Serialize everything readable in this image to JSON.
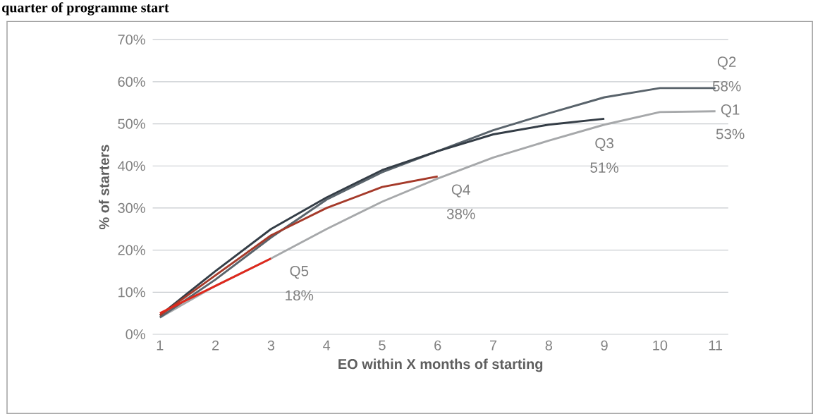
{
  "chart_data": {
    "type": "line",
    "title": "quarter of programme start",
    "xlabel": "EO within X months of starting",
    "ylabel": "% of starters",
    "categories": [
      "1",
      "2",
      "3",
      "4",
      "5",
      "6",
      "7",
      "8",
      "9",
      "10",
      "11"
    ],
    "ylim": [
      0,
      70
    ],
    "yticks": [
      {
        "value": 0,
        "label": "0%"
      },
      {
        "value": 10,
        "label": "10%"
      },
      {
        "value": 20,
        "label": "20%"
      },
      {
        "value": 30,
        "label": "30%"
      },
      {
        "value": 40,
        "label": "40%"
      },
      {
        "value": 50,
        "label": "50%"
      },
      {
        "value": 60,
        "label": "60%"
      },
      {
        "value": 70,
        "label": "70%"
      }
    ],
    "grid": "y",
    "legend": false,
    "marker": "none",
    "line_style": "solid",
    "series": [
      {
        "name": "Q1",
        "color": "#a6a8aa",
        "values": [
          4,
          11.5,
          18,
          25,
          31.5,
          37,
          42,
          46,
          49.8,
          52.8,
          53
        ],
        "value_labels": [
          null,
          null,
          null,
          null,
          null,
          null,
          null,
          null,
          null,
          null,
          "53%"
        ]
      },
      {
        "name": "Q2",
        "color": "#59636b",
        "values": [
          4,
          13,
          23,
          32,
          38.5,
          43.5,
          48.5,
          52.5,
          56.3,
          58.5,
          58.5
        ],
        "value_labels": [
          null,
          null,
          null,
          null,
          null,
          null,
          null,
          null,
          null,
          null,
          "58%"
        ]
      },
      {
        "name": "Q3",
        "color": "#343d46",
        "values": [
          4.5,
          15,
          25,
          32.5,
          39,
          43.5,
          47.5,
          49.8,
          51.2,
          null,
          null
        ],
        "value_labels": [
          null,
          null,
          null,
          null,
          null,
          null,
          null,
          null,
          "51%",
          null,
          null
        ]
      },
      {
        "name": "Q4",
        "color": "#a53a2a",
        "values": [
          4.5,
          14,
          23.5,
          30,
          35,
          37.5,
          null,
          null,
          null,
          null,
          null
        ],
        "value_labels": [
          null,
          null,
          null,
          null,
          null,
          "38%",
          null,
          null,
          null,
          null,
          null
        ]
      },
      {
        "name": "Q5",
        "color": "#e0281c",
        "values": [
          5,
          11.5,
          18,
          null,
          null,
          null,
          null,
          null,
          null,
          null,
          null
        ],
        "value_labels": [
          null,
          null,
          "18%",
          null,
          null,
          null,
          null,
          null,
          null,
          null,
          null
        ]
      }
    ]
  }
}
